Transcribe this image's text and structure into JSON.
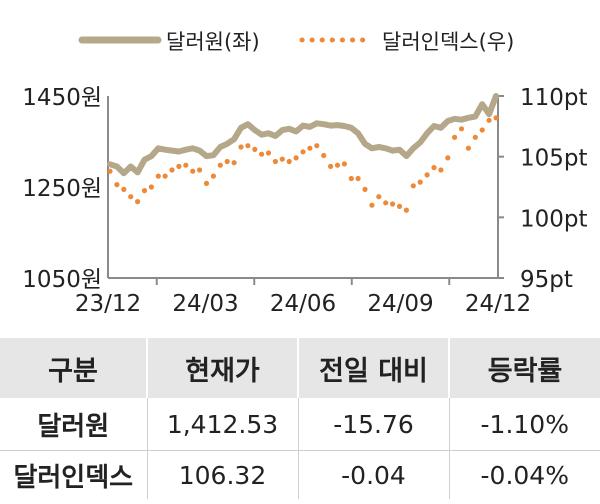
{
  "chart_data": {
    "type": "line",
    "legend_position": "top",
    "x_ticks": [
      "23/12",
      "24/03",
      "24/06",
      "24/09",
      "24/12"
    ],
    "y_left": {
      "ticks": [
        "1450원",
        "1250원",
        "1050원"
      ],
      "range": [
        1050,
        1450
      ]
    },
    "y_right": {
      "ticks": [
        "110pt",
        "105pt",
        "100pt",
        "95pt"
      ],
      "range": [
        95,
        110
      ]
    },
    "series": [
      {
        "name": "달러원(좌)",
        "axis": "left",
        "style": "solid",
        "color": "#b5a88a",
        "x": [
          "2023-12-01",
          "2023-12-08",
          "2023-12-15",
          "2023-12-22",
          "2023-12-29",
          "2024-01-05",
          "2024-01-12",
          "2024-01-19",
          "2024-01-26",
          "2024-02-02",
          "2024-02-09",
          "2024-02-16",
          "2024-02-23",
          "2024-03-01",
          "2024-03-08",
          "2024-03-15",
          "2024-03-22",
          "2024-03-29",
          "2024-04-05",
          "2024-04-12",
          "2024-04-19",
          "2024-04-26",
          "2024-05-03",
          "2024-05-10",
          "2024-05-17",
          "2024-05-24",
          "2024-05-31",
          "2024-06-07",
          "2024-06-14",
          "2024-06-21",
          "2024-06-28",
          "2024-07-05",
          "2024-07-12",
          "2024-07-19",
          "2024-07-26",
          "2024-08-02",
          "2024-08-09",
          "2024-08-16",
          "2024-08-23",
          "2024-08-30",
          "2024-09-06",
          "2024-09-13",
          "2024-09-20",
          "2024-09-27",
          "2024-10-04",
          "2024-10-11",
          "2024-10-18",
          "2024-10-25",
          "2024-11-01",
          "2024-11-08",
          "2024-11-15",
          "2024-11-22",
          "2024-11-29",
          "2024-12-06",
          "2024-12-13",
          "2024-12-20",
          "2024-12-27"
        ],
        "values": [
          1300,
          1295,
          1280,
          1295,
          1282,
          1310,
          1318,
          1335,
          1332,
          1330,
          1328,
          1332,
          1335,
          1330,
          1318,
          1320,
          1338,
          1345,
          1355,
          1380,
          1388,
          1375,
          1365,
          1368,
          1362,
          1375,
          1378,
          1372,
          1385,
          1382,
          1390,
          1388,
          1385,
          1386,
          1384,
          1380,
          1368,
          1345,
          1335,
          1338,
          1335,
          1330,
          1332,
          1318,
          1335,
          1348,
          1368,
          1384,
          1380,
          1395,
          1400,
          1398,
          1402,
          1405,
          1432,
          1410,
          1450
        ]
      },
      {
        "name": "달러인덱스(우)",
        "axis": "right",
        "style": "dotted",
        "color": "#ed8a3a",
        "x": [
          "2023-12-01",
          "2023-12-08",
          "2023-12-15",
          "2023-12-22",
          "2023-12-29",
          "2024-01-05",
          "2024-01-12",
          "2024-01-19",
          "2024-01-26",
          "2024-02-02",
          "2024-02-09",
          "2024-02-16",
          "2024-02-23",
          "2024-03-01",
          "2024-03-08",
          "2024-03-15",
          "2024-03-22",
          "2024-03-29",
          "2024-04-05",
          "2024-04-12",
          "2024-04-19",
          "2024-04-26",
          "2024-05-03",
          "2024-05-10",
          "2024-05-17",
          "2024-05-24",
          "2024-05-31",
          "2024-06-07",
          "2024-06-14",
          "2024-06-21",
          "2024-06-28",
          "2024-07-05",
          "2024-07-12",
          "2024-07-19",
          "2024-07-26",
          "2024-08-02",
          "2024-08-09",
          "2024-08-16",
          "2024-08-23",
          "2024-08-30",
          "2024-09-06",
          "2024-09-13",
          "2024-09-20",
          "2024-09-27",
          "2024-10-04",
          "2024-10-11",
          "2024-10-18",
          "2024-10-25",
          "2024-11-01",
          "2024-11-08",
          "2024-11-15",
          "2024-11-22",
          "2024-11-29",
          "2024-12-06",
          "2024-12-13",
          "2024-12-20",
          "2024-12-27"
        ],
        "values": [
          103.8,
          102.7,
          102.3,
          101.7,
          101.3,
          102.2,
          102.5,
          103.4,
          103.4,
          103.9,
          104.2,
          104.3,
          103.8,
          103.9,
          102.8,
          103.4,
          104.3,
          104.6,
          104.5,
          105.8,
          105.9,
          105.6,
          105.2,
          105.3,
          104.6,
          104.8,
          104.6,
          104.9,
          105.4,
          105.7,
          105.9,
          105.1,
          104.2,
          104.3,
          104.4,
          103.2,
          103.2,
          102.3,
          101.0,
          101.7,
          101.2,
          101.1,
          100.9,
          100.6,
          102.6,
          102.9,
          103.5,
          104.1,
          103.9,
          104.9,
          106.6,
          107.3,
          105.7,
          106.6,
          107.2,
          108.0,
          108.2
        ]
      }
    ]
  },
  "table": {
    "headers": [
      "구분",
      "현재가",
      "전일 대비",
      "등락률"
    ],
    "rows": [
      [
        "달러원",
        "1,412.53",
        "-15.76",
        "-1.10%"
      ],
      [
        "달러인덱스",
        "106.32",
        "-0.04",
        "-0.04%"
      ]
    ]
  }
}
